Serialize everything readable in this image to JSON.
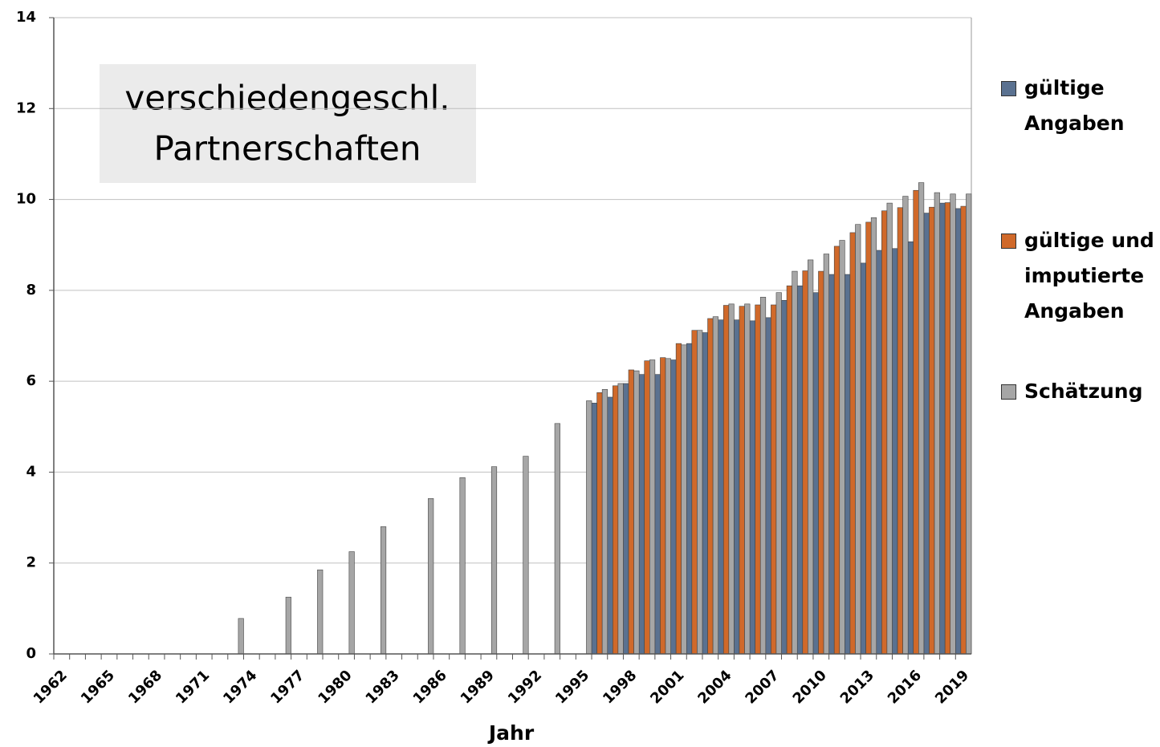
{
  "chart_data": {
    "type": "bar",
    "annotation": [
      "verschiedengeschl.",
      "Partnerschaften"
    ],
    "x_label": "Jahr",
    "categories": [
      "1962",
      null,
      null,
      "1965",
      null,
      null,
      "1968",
      null,
      null,
      "1971",
      null,
      null,
      "1974",
      null,
      null,
      "1977",
      null,
      null,
      "1980",
      null,
      null,
      "1983",
      null,
      null,
      "1986",
      null,
      null,
      "1989",
      null,
      null,
      "1992",
      null,
      null,
      "1995",
      null,
      null,
      "1998",
      null,
      null,
      "2001",
      null,
      null,
      "2004",
      null,
      null,
      "2007",
      null,
      null,
      "2010",
      null,
      null,
      "2013",
      null,
      null,
      "2016",
      null,
      null,
      "2019"
    ],
    "series": [
      {
        "name": "gültige Angaben",
        "color": "#5a7190",
        "values": [
          null,
          null,
          null,
          null,
          null,
          null,
          null,
          null,
          null,
          null,
          null,
          null,
          null,
          null,
          null,
          null,
          null,
          null,
          null,
          null,
          null,
          null,
          null,
          null,
          null,
          null,
          null,
          null,
          null,
          null,
          null,
          null,
          null,
          null,
          5.52,
          5.65,
          5.95,
          6.15,
          6.15,
          6.47,
          6.83,
          7.07,
          7.35,
          7.35,
          7.33,
          7.4,
          7.78,
          8.1,
          7.95,
          8.35,
          8.35,
          8.6,
          8.88,
          8.92,
          9.07,
          9.7,
          9.92,
          9.8
        ]
      },
      {
        "name": "gültige und imputierte Angaben",
        "color": "#d0692a",
        "values": [
          null,
          null,
          null,
          null,
          null,
          null,
          null,
          null,
          null,
          null,
          null,
          null,
          null,
          null,
          null,
          null,
          null,
          null,
          null,
          null,
          null,
          null,
          null,
          null,
          null,
          null,
          null,
          null,
          null,
          null,
          null,
          null,
          null,
          null,
          5.75,
          5.9,
          6.25,
          6.45,
          6.52,
          6.83,
          7.12,
          7.38,
          7.67,
          7.65,
          7.68,
          7.68,
          8.1,
          8.43,
          8.42,
          8.97,
          9.27,
          9.5,
          9.75,
          9.82,
          10.2,
          9.83,
          9.93,
          9.85
        ]
      },
      {
        "name": "Schätzung",
        "color": "#a6a6a6",
        "values": [
          null,
          null,
          null,
          null,
          null,
          null,
          null,
          null,
          null,
          null,
          null,
          0.78,
          null,
          null,
          1.25,
          null,
          1.85,
          null,
          2.25,
          null,
          2.8,
          null,
          null,
          3.42,
          null,
          3.88,
          null,
          4.12,
          null,
          4.35,
          null,
          5.07,
          null,
          5.57,
          5.82,
          5.95,
          6.23,
          6.47,
          6.5,
          6.8,
          7.12,
          7.42,
          7.7,
          7.7,
          7.85,
          7.95,
          8.42,
          8.67,
          8.8,
          9.1,
          9.45,
          9.6,
          9.92,
          10.07,
          10.37,
          10.15,
          10.12,
          10.12
        ]
      }
    ],
    "ylim": [
      0,
      14
    ],
    "yticks": [
      0,
      2,
      4,
      6,
      8,
      10,
      12,
      14
    ],
    "grid": true,
    "legend": "right"
  }
}
